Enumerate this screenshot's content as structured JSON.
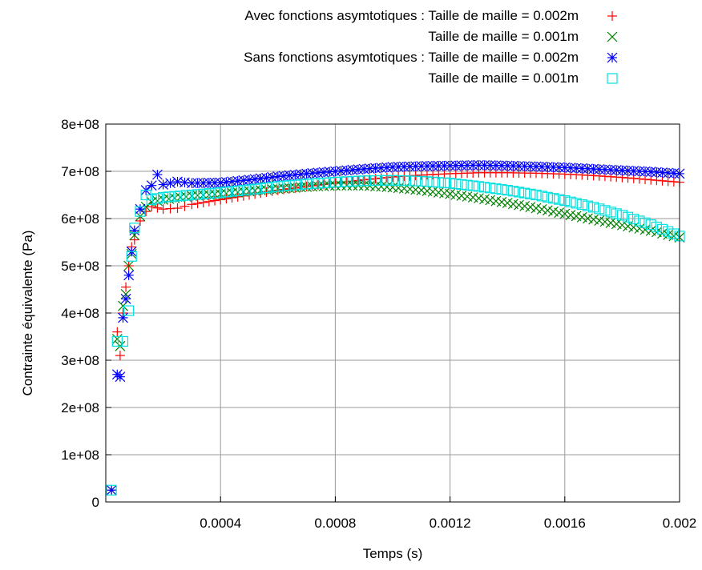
{
  "chart_data": {
    "type": "scatter",
    "title": "",
    "xlabel": "Temps (s)",
    "ylabel": "Contrainte équivalente (Pa)",
    "xlim": [
      0,
      0.002
    ],
    "ylim": [
      0,
      800000000
    ],
    "x_ticks": [
      {
        "value": 0.0004,
        "label": "0.0004"
      },
      {
        "value": 0.0008,
        "label": "0.0008"
      },
      {
        "value": 0.0012,
        "label": "0.0012"
      },
      {
        "value": 0.0016,
        "label": "0.0016"
      },
      {
        "value": 0.002,
        "label": "0.002"
      }
    ],
    "y_ticks": [
      {
        "value": 0,
        "label": "0"
      },
      {
        "value": 100000000,
        "label": "1e+08"
      },
      {
        "value": 200000000,
        "label": "2e+08"
      },
      {
        "value": 300000000,
        "label": "3e+08"
      },
      {
        "value": 400000000,
        "label": "4e+08"
      },
      {
        "value": 500000000,
        "label": "5e+08"
      },
      {
        "value": 600000000,
        "label": "6e+08"
      },
      {
        "value": 700000000,
        "label": "7e+08"
      },
      {
        "value": 800000000,
        "label": "8e+08"
      }
    ],
    "grid": true,
    "legend_position": "top-right",
    "series": [
      {
        "name": "Avec fonctions asymtotiques : Taille de maille = 0.002m",
        "marker": "plus",
        "color": "#ff0000",
        "points": [
          [
            2e-05,
            25000000
          ],
          [
            4e-05,
            360000000
          ],
          [
            5e-05,
            310000000
          ],
          [
            6e-05,
            400000000
          ],
          [
            7e-05,
            455000000
          ],
          [
            8e-05,
            500000000
          ],
          [
            9e-05,
            540000000
          ],
          [
            0.0001,
            555000000
          ],
          [
            0.00012,
            595000000
          ],
          [
            0.00014,
            615000000
          ],
          [
            0.00016,
            625000000
          ],
          [
            0.0002,
            620000000
          ],
          [
            0.00025,
            622000000
          ],
          [
            0.0003,
            630000000
          ],
          [
            0.0004,
            640000000
          ],
          [
            0.0005,
            650000000
          ],
          [
            0.0006,
            660000000
          ],
          [
            0.0007,
            668000000
          ],
          [
            0.0008,
            675000000
          ],
          [
            0.0009,
            682000000
          ],
          [
            0.001,
            688000000
          ],
          [
            0.0011,
            692000000
          ],
          [
            0.0012,
            695000000
          ],
          [
            0.0013,
            697000000
          ],
          [
            0.0014,
            697000000
          ],
          [
            0.0015,
            696000000
          ],
          [
            0.0016,
            694000000
          ],
          [
            0.0017,
            691000000
          ],
          [
            0.0018,
            687000000
          ],
          [
            0.0019,
            682000000
          ],
          [
            0.002,
            677000000
          ]
        ]
      },
      {
        "name": "Taille de maille = 0.001m",
        "marker": "x",
        "color": "#008000",
        "points": [
          [
            2e-05,
            25000000
          ],
          [
            4e-05,
            345000000
          ],
          [
            5e-05,
            330000000
          ],
          [
            6e-05,
            415000000
          ],
          [
            7e-05,
            440000000
          ],
          [
            8e-05,
            500000000
          ],
          [
            9e-05,
            525000000
          ],
          [
            0.0001,
            565000000
          ],
          [
            0.00012,
            605000000
          ],
          [
            0.00014,
            625000000
          ],
          [
            0.00016,
            635000000
          ],
          [
            0.0002,
            640000000
          ],
          [
            0.0003,
            648000000
          ],
          [
            0.0004,
            652000000
          ],
          [
            0.0005,
            658000000
          ],
          [
            0.0006,
            663000000
          ],
          [
            0.0007,
            667000000
          ],
          [
            0.0008,
            670000000
          ],
          [
            0.0009,
            670000000
          ],
          [
            0.001,
            666000000
          ],
          [
            0.0011,
            660000000
          ],
          [
            0.0012,
            652000000
          ],
          [
            0.0013,
            643000000
          ],
          [
            0.0014,
            633000000
          ],
          [
            0.0015,
            622000000
          ],
          [
            0.0016,
            610000000
          ],
          [
            0.0017,
            598000000
          ],
          [
            0.0018,
            586000000
          ],
          [
            0.0019,
            574000000
          ],
          [
            0.002,
            560000000
          ]
        ]
      },
      {
        "name": "Sans fonctions asymtotiques : Taille de maille = 0.002m",
        "marker": "star",
        "color": "#0000ff",
        "points": [
          [
            2e-05,
            25000000
          ],
          [
            4e-05,
            270000000
          ],
          [
            5e-05,
            265000000
          ],
          [
            6e-05,
            390000000
          ],
          [
            7e-05,
            430000000
          ],
          [
            8e-05,
            480000000
          ],
          [
            9e-05,
            530000000
          ],
          [
            0.0001,
            575000000
          ],
          [
            0.00012,
            620000000
          ],
          [
            0.00014,
            660000000
          ],
          [
            0.00016,
            670000000
          ],
          [
            0.00018,
            693000000
          ],
          [
            0.0002,
            672000000
          ],
          [
            0.00025,
            678000000
          ],
          [
            0.0003,
            675000000
          ],
          [
            0.0004,
            676000000
          ],
          [
            0.0005,
            682000000
          ],
          [
            0.0006,
            689000000
          ],
          [
            0.0007,
            695000000
          ],
          [
            0.0008,
            700000000
          ],
          [
            0.0009,
            705000000
          ],
          [
            0.001,
            709000000
          ],
          [
            0.0011,
            711000000
          ],
          [
            0.0012,
            712000000
          ],
          [
            0.0013,
            713000000
          ],
          [
            0.0014,
            712000000
          ],
          [
            0.0015,
            710000000
          ],
          [
            0.0016,
            708000000
          ],
          [
            0.0017,
            705000000
          ],
          [
            0.0018,
            702000000
          ],
          [
            0.0019,
            699000000
          ],
          [
            0.002,
            695000000
          ]
        ]
      },
      {
        "name": "Taille de maille = 0.001m",
        "marker": "square",
        "color": "#00e0e0",
        "points": [
          [
            2e-05,
            25000000
          ],
          [
            4e-05,
            340000000
          ],
          [
            6e-05,
            340000000
          ],
          [
            8e-05,
            405000000
          ],
          [
            9e-05,
            520000000
          ],
          [
            0.0001,
            580000000
          ],
          [
            0.00012,
            615000000
          ],
          [
            0.00014,
            650000000
          ],
          [
            0.00016,
            640000000
          ],
          [
            0.0002,
            645000000
          ],
          [
            0.0003,
            650000000
          ],
          [
            0.0004,
            655000000
          ],
          [
            0.0005,
            661000000
          ],
          [
            0.0006,
            668000000
          ],
          [
            0.0007,
            673000000
          ],
          [
            0.0008,
            677000000
          ],
          [
            0.0009,
            680000000
          ],
          [
            0.001,
            681000000
          ],
          [
            0.0011,
            679000000
          ],
          [
            0.0012,
            675000000
          ],
          [
            0.0013,
            668000000
          ],
          [
            0.0014,
            660000000
          ],
          [
            0.0015,
            650000000
          ],
          [
            0.0016,
            638000000
          ],
          [
            0.0017,
            624000000
          ],
          [
            0.0018,
            607000000
          ],
          [
            0.0019,
            587000000
          ],
          [
            0.002,
            563000000
          ]
        ]
      }
    ]
  }
}
